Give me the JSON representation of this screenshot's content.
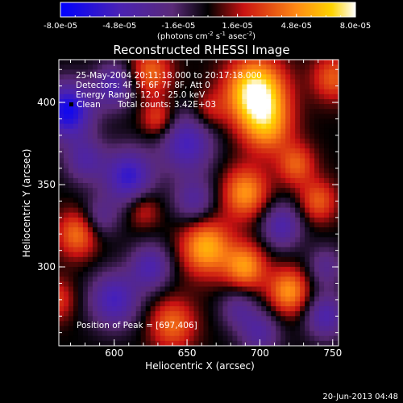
{
  "chart_data": {
    "type": "heatmap",
    "title": "Reconstructed RHESSI Image",
    "xlabel": "Heliocentric X (arcsec)",
    "ylabel": "Heliocentric Y (arcsec)",
    "xlim": [
      562,
      754
    ],
    "ylim": [
      252,
      426
    ],
    "x_ticks": [
      "600",
      "650",
      "700",
      "750"
    ],
    "y_ticks": [
      "300",
      "350",
      "400"
    ],
    "colorbar": {
      "tick_labels": [
        "-8.0e-05",
        "-4.8e-05",
        "-1.6e-05",
        "1.6e-05",
        "4.8e-05",
        "8.0e-05"
      ],
      "range": [
        -8e-05,
        8e-05
      ],
      "unit_prefix": "(photons cm",
      "unit_exp1": "-2",
      "unit_mid": " s",
      "unit_exp2": "-1",
      "unit_suffix": " asec",
      "unit_exp3": "-2",
      "unit_close": ")"
    },
    "annotations": {
      "time": "25-May-2004 20:11:18.000 to 20:17:18.000",
      "detectors": "Detectors: 4F 5F 6F 7F 8F, Att 0",
      "energy": "Energy Range: 12.0 - 25.0 keV",
      "method": "Clean",
      "counts": "Total counts: 3.42E+03",
      "peak": "Position of Peak = [697,406]"
    },
    "footer_date": "20-Jun-2013 04:48",
    "peak_position": [
      697,
      406
    ],
    "grid": false,
    "colormap": "blue-purple-black-red-orange-yellow-white"
  }
}
